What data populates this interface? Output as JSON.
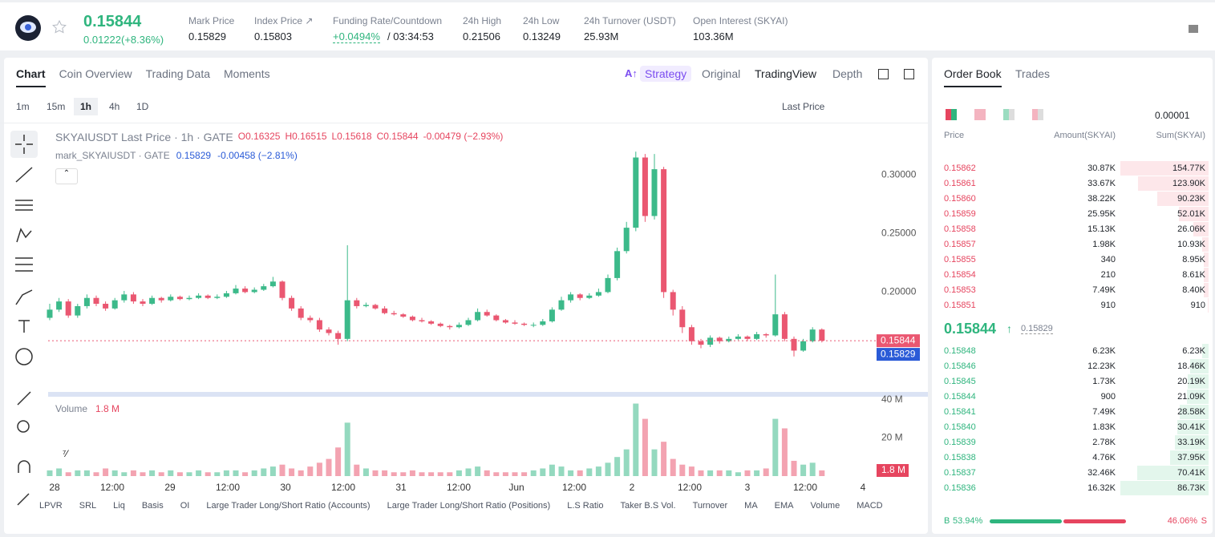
{
  "header": {
    "price": "0.15844",
    "change": "0.01222(+8.36%)",
    "stats": [
      {
        "label": "Mark Price",
        "value": "0.15829"
      },
      {
        "label": "Index Price ↗",
        "value": "0.15803"
      },
      {
        "label": "Funding Rate/Countdown",
        "value": "+0.0494%",
        "extra": "/ 03:34:53"
      },
      {
        "label": "24h High",
        "value": "0.21506"
      },
      {
        "label": "24h Low",
        "value": "0.13249"
      },
      {
        "label": "24h Turnover (USDT)",
        "value": "25.93M"
      },
      {
        "label": "Open Interest (SKYAI)",
        "value": "103.36M"
      }
    ]
  },
  "chart_tabs": [
    "Chart",
    "Coin Overview",
    "Trading Data",
    "Moments"
  ],
  "view_tabs": [
    "Strategy",
    "Original",
    "TradingView",
    "Depth"
  ],
  "intervals": [
    "1m",
    "15m",
    "1h",
    "4h",
    "1D"
  ],
  "price_type": "Last Price",
  "chart": {
    "type": "candlestick",
    "legend": {
      "title": "SKYAIUSDT Last Price · 1h · GATE",
      "open": "O0.16325",
      "high": "H0.16515",
      "low": "L0.15618",
      "close": "C0.15844",
      "change": "-0.00479 (−2.93%)",
      "mark_title": "mark_SKYAIUSDT · GATE",
      "mark_value": "0.15829",
      "mark_change": "-0.00458 (−2.81%)",
      "volume_title": "Volume",
      "volume_value": "1.8 M"
    },
    "ylim": [
      0.114,
      0.34
    ],
    "yticks": [
      {
        "value": 0.3,
        "label": "0.30000"
      },
      {
        "value": 0.25,
        "label": "0.25000"
      },
      {
        "value": 0.2,
        "label": "0.20000"
      }
    ],
    "vol_ylim": [
      0,
      42
    ],
    "vol_yticks": [
      {
        "value": 40,
        "label": "40 M"
      },
      {
        "value": 20,
        "label": "20 M"
      }
    ],
    "last_price": 0.15844,
    "mark_price": 0.15829,
    "vol_tag": {
      "value": 1.8,
      "label": "1.8 M"
    },
    "xlabels": [
      "28",
      "12:00",
      "29",
      "12:00",
      "30",
      "12:00",
      "31",
      "12:00",
      "Jun",
      "12:00",
      "2",
      "12:00",
      "3",
      "12:00",
      "4"
    ],
    "up_color": "#3cba8a",
    "down_color": "#ea5771",
    "candles": [
      [
        0.178,
        0.19,
        0.176,
        0.185
      ],
      [
        0.185,
        0.195,
        0.183,
        0.192
      ],
      [
        0.192,
        0.194,
        0.178,
        0.18
      ],
      [
        0.18,
        0.19,
        0.178,
        0.188
      ],
      [
        0.188,
        0.198,
        0.186,
        0.195
      ],
      [
        0.195,
        0.197,
        0.188,
        0.19
      ],
      [
        0.19,
        0.192,
        0.184,
        0.186
      ],
      [
        0.186,
        0.195,
        0.185,
        0.193
      ],
      [
        0.193,
        0.201,
        0.191,
        0.198
      ],
      [
        0.198,
        0.2,
        0.19,
        0.192
      ],
      [
        0.192,
        0.194,
        0.188,
        0.19
      ],
      [
        0.19,
        0.197,
        0.189,
        0.195
      ],
      [
        0.195,
        0.196,
        0.191,
        0.193
      ],
      [
        0.193,
        0.198,
        0.192,
        0.196
      ],
      [
        0.196,
        0.197,
        0.193,
        0.194
      ],
      [
        0.194,
        0.197,
        0.193,
        0.195
      ],
      [
        0.195,
        0.199,
        0.194,
        0.197
      ],
      [
        0.197,
        0.198,
        0.194,
        0.195
      ],
      [
        0.195,
        0.198,
        0.194,
        0.196
      ],
      [
        0.196,
        0.201,
        0.195,
        0.199
      ],
      [
        0.199,
        0.206,
        0.198,
        0.203
      ],
      [
        0.203,
        0.205,
        0.199,
        0.2
      ],
      [
        0.2,
        0.204,
        0.199,
        0.202
      ],
      [
        0.202,
        0.207,
        0.201,
        0.205
      ],
      [
        0.205,
        0.213,
        0.204,
        0.209
      ],
      [
        0.209,
        0.21,
        0.193,
        0.195
      ],
      [
        0.195,
        0.197,
        0.184,
        0.186
      ],
      [
        0.186,
        0.188,
        0.176,
        0.178
      ],
      [
        0.178,
        0.18,
        0.174,
        0.176
      ],
      [
        0.176,
        0.178,
        0.166,
        0.168
      ],
      [
        0.168,
        0.17,
        0.163,
        0.165
      ],
      [
        0.165,
        0.167,
        0.155,
        0.16
      ],
      [
        0.16,
        0.24,
        0.158,
        0.193
      ],
      [
        0.193,
        0.195,
        0.186,
        0.188
      ],
      [
        0.188,
        0.191,
        0.187,
        0.189
      ],
      [
        0.189,
        0.19,
        0.185,
        0.186
      ],
      [
        0.186,
        0.188,
        0.181,
        0.182
      ],
      [
        0.182,
        0.184,
        0.18,
        0.181
      ],
      [
        0.181,
        0.182,
        0.178,
        0.179
      ],
      [
        0.179,
        0.18,
        0.175,
        0.176
      ],
      [
        0.176,
        0.178,
        0.174,
        0.175
      ],
      [
        0.175,
        0.176,
        0.172,
        0.173
      ],
      [
        0.173,
        0.174,
        0.17,
        0.171
      ],
      [
        0.171,
        0.172,
        0.168,
        0.17
      ],
      [
        0.17,
        0.174,
        0.169,
        0.172
      ],
      [
        0.172,
        0.178,
        0.171,
        0.176
      ],
      [
        0.176,
        0.186,
        0.175,
        0.183
      ],
      [
        0.183,
        0.185,
        0.179,
        0.18
      ],
      [
        0.18,
        0.181,
        0.175,
        0.176
      ],
      [
        0.176,
        0.177,
        0.173,
        0.174
      ],
      [
        0.174,
        0.176,
        0.172,
        0.173
      ],
      [
        0.173,
        0.174,
        0.171,
        0.172
      ],
      [
        0.172,
        0.174,
        0.17,
        0.172
      ],
      [
        0.172,
        0.177,
        0.171,
        0.175
      ],
      [
        0.175,
        0.187,
        0.174,
        0.185
      ],
      [
        0.185,
        0.196,
        0.184,
        0.193
      ],
      [
        0.193,
        0.2,
        0.191,
        0.198
      ],
      [
        0.198,
        0.199,
        0.193,
        0.195
      ],
      [
        0.195,
        0.199,
        0.194,
        0.197
      ],
      [
        0.197,
        0.203,
        0.196,
        0.2
      ],
      [
        0.2,
        0.215,
        0.199,
        0.212
      ],
      [
        0.212,
        0.238,
        0.21,
        0.235
      ],
      [
        0.235,
        0.26,
        0.233,
        0.255
      ],
      [
        0.255,
        0.32,
        0.252,
        0.315
      ],
      [
        0.315,
        0.318,
        0.26,
        0.265
      ],
      [
        0.265,
        0.318,
        0.262,
        0.305
      ],
      [
        0.305,
        0.307,
        0.195,
        0.2
      ],
      [
        0.2,
        0.202,
        0.18,
        0.185
      ],
      [
        0.185,
        0.188,
        0.165,
        0.17
      ],
      [
        0.17,
        0.172,
        0.155,
        0.158
      ],
      [
        0.158,
        0.16,
        0.152,
        0.155
      ],
      [
        0.155,
        0.163,
        0.153,
        0.161
      ],
      [
        0.161,
        0.162,
        0.156,
        0.158
      ],
      [
        0.158,
        0.162,
        0.157,
        0.16
      ],
      [
        0.16,
        0.164,
        0.159,
        0.162
      ],
      [
        0.162,
        0.163,
        0.158,
        0.16
      ],
      [
        0.16,
        0.166,
        0.159,
        0.164
      ],
      [
        0.164,
        0.165,
        0.161,
        0.163
      ],
      [
        0.163,
        0.215,
        0.162,
        0.181
      ],
      [
        0.181,
        0.183,
        0.158,
        0.16
      ],
      [
        0.16,
        0.162,
        0.145,
        0.15
      ],
      [
        0.15,
        0.16,
        0.149,
        0.158
      ],
      [
        0.158,
        0.17,
        0.157,
        0.168
      ],
      [
        0.168,
        0.169,
        0.157,
        0.15844
      ]
    ],
    "volumes": [
      3,
      4,
      2,
      3,
      3,
      2,
      4,
      3,
      2,
      3,
      2,
      3,
      2,
      3,
      2,
      2,
      3,
      2,
      2,
      3,
      3,
      2,
      3,
      4,
      5,
      6,
      4,
      3,
      5,
      7,
      9,
      15,
      28,
      6,
      4,
      3,
      3,
      2,
      2,
      3,
      2,
      2,
      2,
      2,
      3,
      4,
      5,
      3,
      2,
      2,
      2,
      2,
      3,
      4,
      6,
      5,
      3,
      3,
      4,
      5,
      7,
      10,
      14,
      38,
      30,
      14,
      18,
      9,
      6,
      5,
      3,
      3,
      3,
      3,
      2,
      3,
      3,
      4,
      30,
      25,
      8,
      6,
      7,
      3
    ]
  },
  "indicators": [
    "LPVR",
    "SRL",
    "Liq",
    "Basis",
    "OI",
    "Large Trader Long/Short Ratio (Accounts)",
    "Large Trader Long/Short Ratio (Positions)",
    "L.S Ratio",
    "Taker B.S Vol.",
    "Turnover",
    "MA",
    "EMA",
    "Volume",
    "MACD"
  ],
  "order_book": {
    "tabs": [
      "Order Book",
      "Trades"
    ],
    "precision": "0.00001",
    "columns": [
      "Price",
      "Amount(SKYAI)",
      "Sum(SKYAI)"
    ],
    "asks": [
      [
        "0.15862",
        "30.87K",
        "154.77K"
      ],
      [
        "0.15861",
        "33.67K",
        "123.90K"
      ],
      [
        "0.15860",
        "38.22K",
        "90.23K"
      ],
      [
        "0.15859",
        "25.95K",
        "52.01K"
      ],
      [
        "0.15858",
        "15.13K",
        "26.06K"
      ],
      [
        "0.15857",
        "1.98K",
        "10.93K"
      ],
      [
        "0.15855",
        "340",
        "8.95K"
      ],
      [
        "0.15854",
        "210",
        "8.61K"
      ],
      [
        "0.15853",
        "7.49K",
        "8.40K"
      ],
      [
        "0.15851",
        "910",
        "910"
      ]
    ],
    "ask_depth": [
      154.77,
      123.9,
      90.23,
      52.01,
      26.06,
      10.93,
      8.95,
      8.61,
      8.4,
      0.91
    ],
    "last": "0.15844",
    "mark": "0.15829",
    "bids": [
      [
        "0.15848",
        "6.23K",
        "6.23K"
      ],
      [
        "0.15846",
        "12.23K",
        "18.46K"
      ],
      [
        "0.15845",
        "1.73K",
        "20.19K"
      ],
      [
        "0.15844",
        "900",
        "21.09K"
      ],
      [
        "0.15841",
        "7.49K",
        "28.58K"
      ],
      [
        "0.15840",
        "1.83K",
        "30.41K"
      ],
      [
        "0.15839",
        "2.78K",
        "33.19K"
      ],
      [
        "0.15838",
        "4.76K",
        "37.95K"
      ],
      [
        "0.15837",
        "32.46K",
        "70.41K"
      ],
      [
        "0.15836",
        "16.32K",
        "86.73K"
      ]
    ],
    "bid_depth": [
      6.23,
      18.46,
      20.19,
      21.09,
      28.58,
      30.41,
      33.19,
      37.95,
      70.41,
      86.73
    ],
    "ratio": {
      "b": "B",
      "buy": 53.94,
      "buy_label": "53.94%",
      "sell": 46.06,
      "sell_label": "46.06%",
      "s": "S"
    }
  }
}
